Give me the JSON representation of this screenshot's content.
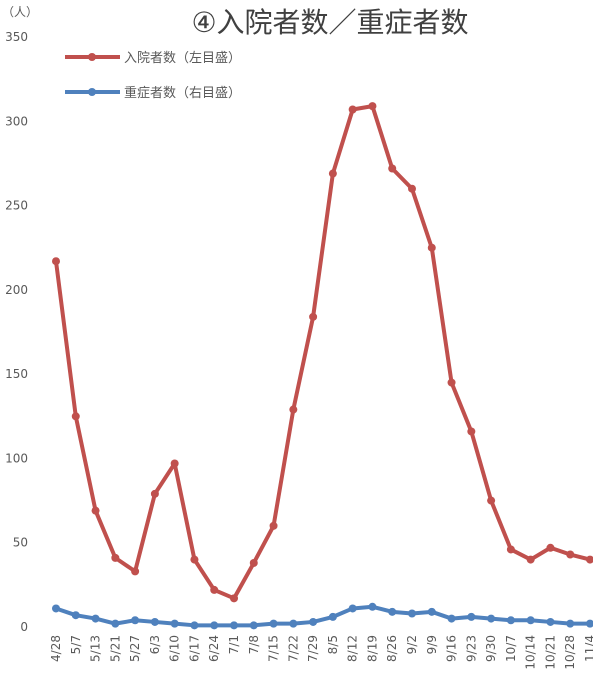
{
  "chart_data": {
    "type": "line",
    "title": "④入院者数／重症者数",
    "y_unit": "（人）",
    "categories": [
      "4/28",
      "5/7",
      "5/13",
      "5/21",
      "5/27",
      "6/3",
      "6/10",
      "6/17",
      "6/24",
      "7/1",
      "7/8",
      "7/15",
      "7/22",
      "7/29",
      "8/5",
      "8/12",
      "8/19",
      "8/26",
      "9/2",
      "9/9",
      "9/16",
      "9/23",
      "9/30",
      "10/7",
      "10/14",
      "10/21",
      "10/28",
      "11/4"
    ],
    "series": [
      {
        "name": "入院者数（左目盛）",
        "color": "#c0504d",
        "values": [
          217,
          125,
          69,
          41,
          33,
          79,
          97,
          40,
          22,
          17,
          38,
          60,
          129,
          184,
          269,
          307,
          309,
          272,
          260,
          225,
          145,
          116,
          75,
          46,
          40,
          47,
          43,
          40
        ]
      },
      {
        "name": "重症者数（右目盛）",
        "color": "#4f81bd",
        "values": [
          11,
          7,
          5,
          2,
          4,
          3,
          2,
          1,
          1,
          1,
          1,
          2,
          2,
          3,
          6,
          11,
          12,
          9,
          8,
          9,
          5,
          6,
          5,
          4,
          4,
          3,
          2,
          2
        ]
      }
    ],
    "ylim": [
      0,
      350
    ],
    "yticks": [
      0,
      50,
      100,
      150,
      200,
      250,
      300,
      350
    ],
    "legend": "top-left",
    "grid": false
  }
}
